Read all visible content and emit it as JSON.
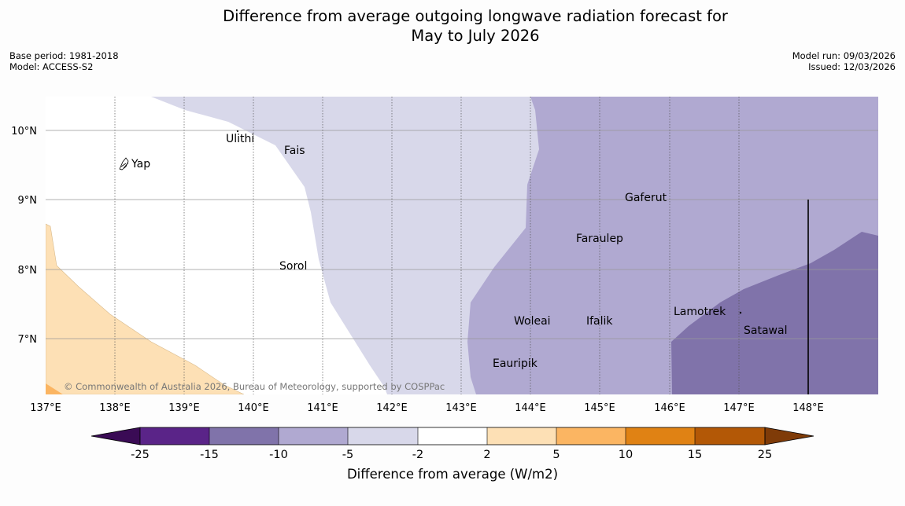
{
  "title_line1": "Difference from average outgoing longwave radiation forecast for",
  "title_line2": "May to July 2026",
  "meta": {
    "base_period": "Base period: 1981-2018",
    "model": "Model: ACCESS-S2",
    "model_run": "Model run: 09/03/2026",
    "issued": "Issued: 12/03/2026"
  },
  "lon_labels": [
    "137°E",
    "138°E",
    "139°E",
    "140°E",
    "141°E",
    "142°E",
    "143°E",
    "144°E",
    "145°E",
    "146°E",
    "147°E",
    "148°E"
  ],
  "lat_labels": [
    "10°N",
    "9°N",
    "8°N",
    "7°N"
  ],
  "places": [
    {
      "name": "Yap"
    },
    {
      "name": "Ulithi"
    },
    {
      "name": "Fais"
    },
    {
      "name": "Sorol"
    },
    {
      "name": "Gaferut"
    },
    {
      "name": "Faraulep"
    },
    {
      "name": "Woleai"
    },
    {
      "name": "Ifalik"
    },
    {
      "name": "Eauripik"
    },
    {
      "name": "Lamotrek"
    },
    {
      "name": "Satawal"
    }
  ],
  "copyright": "© Commonwealth of Australia 2026, Bureau of Meteorology, supported by COSPPac",
  "colorbar": {
    "ticks": [
      "-25",
      "-15",
      "-10",
      "-5",
      "-2",
      "2",
      "5",
      "10",
      "15",
      "25"
    ],
    "colors": [
      "#3a0b55",
      "#5a2488",
      "#8073aa",
      "#b0a9d1",
      "#d8d8ea",
      "#ffffff",
      "#fde0b5",
      "#fbb562",
      "#e08214",
      "#b35806",
      "#7f3b08"
    ],
    "label": "Difference from average (W/m2)"
  }
}
